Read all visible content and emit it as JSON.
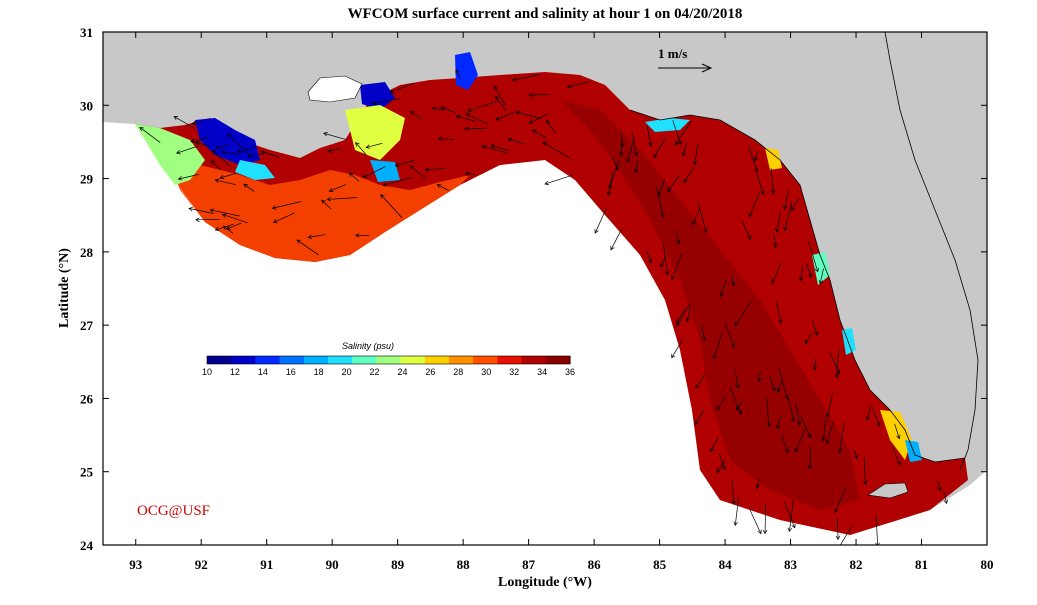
{
  "title": "WFCOM surface current and salinity at hour 1 on 04/20/2018",
  "map": {
    "x_axis": {
      "label": "Longitude (°W)",
      "range": [
        93.5,
        80
      ],
      "ticks": [
        "93",
        "92",
        "91",
        "90",
        "89",
        "88",
        "87",
        "86",
        "85",
        "84",
        "83",
        "82",
        "81",
        "80"
      ]
    },
    "y_axis": {
      "label": "Latitude (°N)",
      "range": [
        24,
        31
      ],
      "ticks": [
        "24",
        "25",
        "26",
        "27",
        "28",
        "29",
        "30",
        "31"
      ]
    },
    "scale_vector": {
      "label": "1 m/s"
    },
    "colorbar": {
      "title": "Salinity (psu)",
      "ticks": [
        "10",
        "12",
        "14",
        "16",
        "18",
        "20",
        "22",
        "24",
        "26",
        "28",
        "30",
        "32",
        "34",
        "36"
      ],
      "colors": [
        "#00008f",
        "#0000c8",
        "#0028ff",
        "#0070ff",
        "#00b0ff",
        "#20e0ff",
        "#60ffc0",
        "#a0ff80",
        "#e0ff40",
        "#ffd000",
        "#ff9000",
        "#ff5000",
        "#e81000",
        "#b00000",
        "#8a0000"
      ]
    },
    "credit": "OCG@USF",
    "colors": {
      "land": "#c8c8c8",
      "ocean_high_salinity": "#b00000",
      "frame": "#000000",
      "credit": "#cc0000"
    }
  }
}
